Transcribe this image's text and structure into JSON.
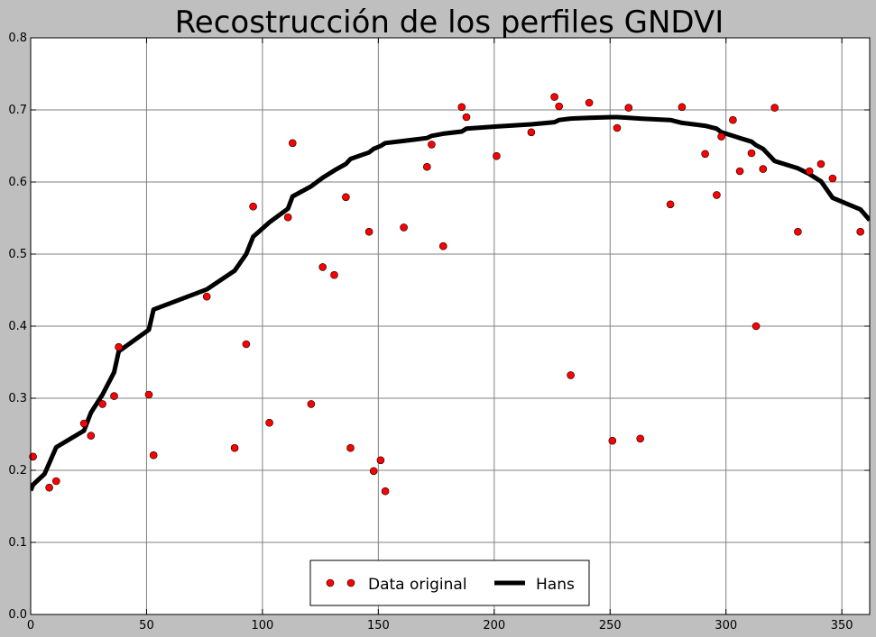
{
  "chart_data": {
    "type": "scatter",
    "title": "Recostrucción de los perfiles GNDVI",
    "xlabel": "",
    "ylabel": "",
    "xlim": [
      0,
      362
    ],
    "ylim": [
      0,
      0.8
    ],
    "x_ticks": [
      0,
      50,
      100,
      150,
      200,
      250,
      300,
      350
    ],
    "x_tick_labels": [
      "0",
      "50",
      "100",
      "150",
      "200",
      "250",
      "300",
      "350"
    ],
    "y_ticks": [
      0.0,
      0.1,
      0.2,
      0.3,
      0.4,
      0.5,
      0.6,
      0.7,
      0.8
    ],
    "y_tick_labels": [
      "0.0",
      "0.1",
      "0.2",
      "0.3",
      "0.4",
      "0.5",
      "0.6",
      "0.7",
      "0.8"
    ],
    "grid": true,
    "legend_position": "bottom-center",
    "series": [
      {
        "name": "Data original",
        "kind": "scatter",
        "color": "#ff0000",
        "points": [
          [
            1,
            0.219
          ],
          [
            8,
            0.176
          ],
          [
            11,
            0.185
          ],
          [
            23,
            0.265
          ],
          [
            26,
            0.248
          ],
          [
            31,
            0.292
          ],
          [
            36,
            0.303
          ],
          [
            38,
            0.371
          ],
          [
            51,
            0.305
          ],
          [
            53,
            0.221
          ],
          [
            76,
            0.441
          ],
          [
            88,
            0.231
          ],
          [
            93,
            0.375
          ],
          [
            96,
            0.566
          ],
          [
            103,
            0.266
          ],
          [
            111,
            0.551
          ],
          [
            113,
            0.654
          ],
          [
            121,
            0.292
          ],
          [
            126,
            0.482
          ],
          [
            131,
            0.471
          ],
          [
            136,
            0.579
          ],
          [
            138,
            0.231
          ],
          [
            146,
            0.531
          ],
          [
            148,
            0.199
          ],
          [
            151,
            0.214
          ],
          [
            153,
            0.171
          ],
          [
            161,
            0.537
          ],
          [
            171,
            0.621
          ],
          [
            173,
            0.652
          ],
          [
            178,
            0.511
          ],
          [
            186,
            0.704
          ],
          [
            188,
            0.69
          ],
          [
            201,
            0.636
          ],
          [
            216,
            0.669
          ],
          [
            226,
            0.718
          ],
          [
            228,
            0.705
          ],
          [
            233,
            0.332
          ],
          [
            241,
            0.71
          ],
          [
            251,
            0.241
          ],
          [
            253,
            0.675
          ],
          [
            258,
            0.703
          ],
          [
            263,
            0.244
          ],
          [
            276,
            0.569
          ],
          [
            281,
            0.704
          ],
          [
            291,
            0.639
          ],
          [
            296,
            0.582
          ],
          [
            298,
            0.663
          ],
          [
            303,
            0.686
          ],
          [
            306,
            0.615
          ],
          [
            311,
            0.64
          ],
          [
            313,
            0.4
          ],
          [
            316,
            0.618
          ],
          [
            321,
            0.703
          ],
          [
            331,
            0.531
          ],
          [
            336,
            0.615
          ],
          [
            341,
            0.625
          ],
          [
            346,
            0.605
          ],
          [
            358,
            0.531
          ]
        ]
      },
      {
        "name": "Hans",
        "kind": "line",
        "color": "#000000",
        "points": [
          [
            0,
            0.172
          ],
          [
            1,
            0.18
          ],
          [
            6,
            0.195
          ],
          [
            11,
            0.232
          ],
          [
            23,
            0.255
          ],
          [
            26,
            0.28
          ],
          [
            31,
            0.305
          ],
          [
            36,
            0.336
          ],
          [
            38,
            0.365
          ],
          [
            51,
            0.395
          ],
          [
            53,
            0.423
          ],
          [
            76,
            0.451
          ],
          [
            88,
            0.477
          ],
          [
            93,
            0.5
          ],
          [
            96,
            0.524
          ],
          [
            103,
            0.544
          ],
          [
            111,
            0.563
          ],
          [
            113,
            0.58
          ],
          [
            121,
            0.594
          ],
          [
            126,
            0.606
          ],
          [
            131,
            0.616
          ],
          [
            136,
            0.625
          ],
          [
            138,
            0.632
          ],
          [
            146,
            0.641
          ],
          [
            148,
            0.646
          ],
          [
            151,
            0.65
          ],
          [
            153,
            0.654
          ],
          [
            161,
            0.657
          ],
          [
            171,
            0.661
          ],
          [
            173,
            0.664
          ],
          [
            178,
            0.667
          ],
          [
            186,
            0.67
          ],
          [
            188,
            0.674
          ],
          [
            201,
            0.677
          ],
          [
            216,
            0.68
          ],
          [
            226,
            0.683
          ],
          [
            228,
            0.686
          ],
          [
            233,
            0.688
          ],
          [
            241,
            0.689
          ],
          [
            251,
            0.69
          ],
          [
            253,
            0.69
          ],
          [
            258,
            0.689
          ],
          [
            263,
            0.688
          ],
          [
            276,
            0.686
          ],
          [
            281,
            0.682
          ],
          [
            291,
            0.678
          ],
          [
            296,
            0.674
          ],
          [
            298,
            0.669
          ],
          [
            303,
            0.664
          ],
          [
            306,
            0.661
          ],
          [
            311,
            0.656
          ],
          [
            313,
            0.651
          ],
          [
            316,
            0.646
          ],
          [
            321,
            0.629
          ],
          [
            331,
            0.619
          ],
          [
            336,
            0.611
          ],
          [
            341,
            0.601
          ],
          [
            346,
            0.578
          ],
          [
            358,
            0.562
          ],
          [
            362,
            0.547
          ]
        ]
      }
    ]
  }
}
